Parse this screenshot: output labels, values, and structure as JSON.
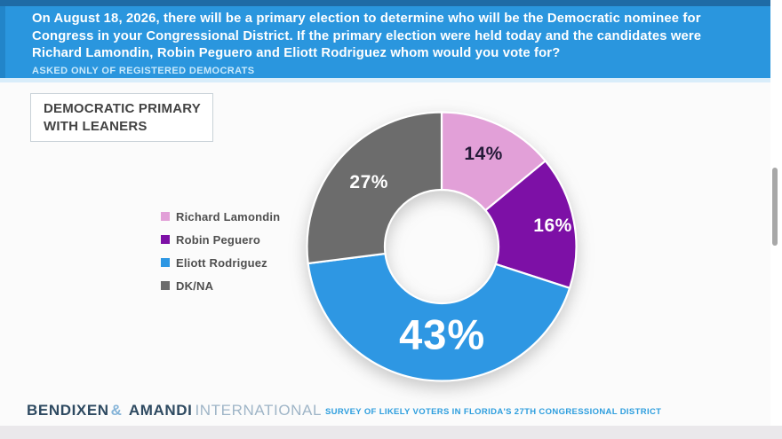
{
  "header": {
    "question": "On August 18, 2026, there will be a primary election to determine who will be the Democratic nominee for Congress in your Congressional District. If the primary election were held today and the candidates were Richard Lamondin, Robin Peguero and Eliott Rodriguez whom would you vote for?",
    "subtext": "ASKED ONLY OF REGISTERED DEMOCRATS",
    "background": "#2a96de"
  },
  "title_box": {
    "line1": "DEMOCRATIC PRIMARY",
    "line2": "WITH LEANERS"
  },
  "chart_data": {
    "type": "pie",
    "subtype": "donut",
    "title": "DEMOCRATIC PRIMARY WITH LEANERS",
    "categories": [
      "Richard Lamondin",
      "Robin Peguero",
      "Eliott Rodriguez",
      "DK/NA"
    ],
    "values": [
      14,
      16,
      43,
      27
    ],
    "unit": "%",
    "data_labels": [
      "14%",
      "16%",
      "43%",
      "27%"
    ],
    "colors": [
      "#e2a0d8",
      "#7d10a6",
      "#2e97e3",
      "#6c6c6c"
    ],
    "start_angle_deg": 0,
    "direction": "clockwise",
    "inner_radius_ratio": 0.42,
    "legend_position": "left"
  },
  "footer": {
    "brand": {
      "part1": "BENDIXEN",
      "amp": "&",
      "part2": "AMANDI",
      "part3": "INTERNATIONAL"
    },
    "survey_note": "SURVEY OF LIKELY VOTERS IN FLORIDA'S 27TH CONGRESSIONAL DISTRICT"
  }
}
